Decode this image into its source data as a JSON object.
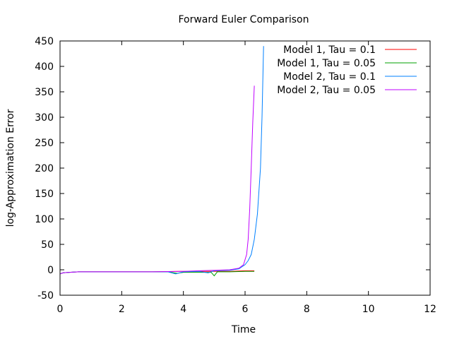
{
  "chart_data": {
    "type": "line",
    "title": "Forward Euler Comparison",
    "xlabel": "Time",
    "ylabel": "log-Approximation Error",
    "xlim": [
      0,
      12
    ],
    "ylim": [
      -50,
      450
    ],
    "xticks": [
      0,
      2,
      4,
      6,
      8,
      10,
      12
    ],
    "yticks": [
      -50,
      0,
      50,
      100,
      150,
      200,
      250,
      300,
      350,
      400,
      450
    ],
    "grid": false,
    "legend_position": "top-right",
    "series": [
      {
        "name": "Model 1, Tau = 0.1",
        "color": "#ff0000",
        "x": [
          0,
          0.1,
          0.3,
          0.6,
          1,
          2,
          3,
          4,
          4.5,
          5,
          5.5,
          6,
          6.3
        ],
        "y": [
          -8,
          -6,
          -5,
          -4,
          -4,
          -4,
          -4,
          -3,
          -3,
          -3,
          -3,
          -2,
          -2
        ]
      },
      {
        "name": "Model 1, Tau = 0.05",
        "color": "#00a000",
        "x": [
          0,
          0.1,
          0.3,
          0.6,
          1,
          2,
          3,
          3.5,
          3.8,
          4,
          4.5,
          4.9,
          5.0,
          5.1,
          5.5,
          6,
          6.3
        ],
        "y": [
          -8,
          -6,
          -5,
          -4,
          -4,
          -4,
          -4,
          -4,
          -7,
          -5,
          -5,
          -5,
          -12,
          -4,
          -4,
          -3,
          -3
        ]
      },
      {
        "name": "Model 2, Tau = 0.1",
        "color": "#0080ff",
        "x": [
          0,
          0.1,
          0.3,
          0.6,
          1,
          2,
          3,
          3.5,
          3.75,
          4,
          4.5,
          4.8,
          5,
          5.5,
          5.8,
          6.0,
          6.1,
          6.2,
          6.3,
          6.4,
          6.5,
          6.55,
          6.6
        ],
        "y": [
          -8,
          -6,
          -5,
          -4,
          -4,
          -4,
          -4,
          -4,
          -8,
          -4,
          -3,
          -6,
          -2,
          -1,
          2,
          10,
          18,
          30,
          60,
          110,
          200,
          300,
          440
        ]
      },
      {
        "name": "Model 2, Tau = 0.05",
        "color": "#c000ff",
        "x": [
          0,
          0.1,
          0.3,
          0.6,
          1,
          2,
          3,
          4,
          4.5,
          5,
          5.5,
          5.8,
          5.95,
          6.05,
          6.1,
          6.15,
          6.2,
          6.25,
          6.3
        ],
        "y": [
          -8,
          -6,
          -5,
          -4,
          -4,
          -4,
          -4,
          -3,
          -2,
          -1,
          0,
          3,
          10,
          30,
          60,
          120,
          200,
          290,
          362
        ]
      }
    ]
  }
}
